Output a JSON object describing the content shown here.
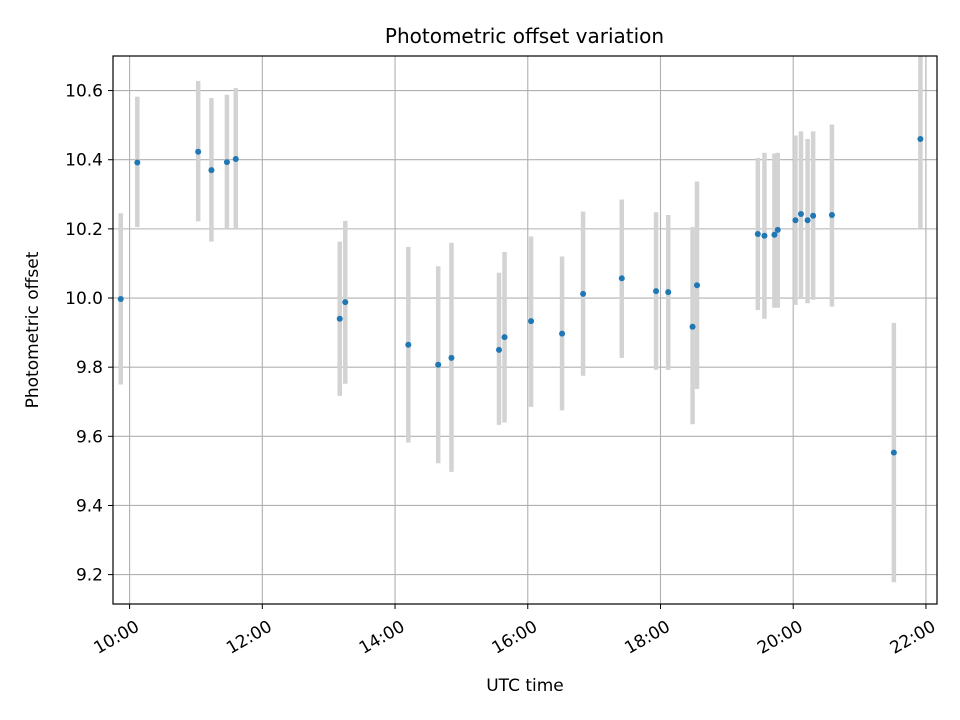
{
  "chart_data": {
    "type": "scatter",
    "title": "Photometric offset variation",
    "xlabel": "UTC time",
    "ylabel": "Photometric offset",
    "x_is_time": true,
    "xlim": [
      "09:45",
      "22:10"
    ],
    "ylim": [
      9.115,
      10.7
    ],
    "xticks": [
      "10:00",
      "12:00",
      "14:00",
      "16:00",
      "18:00",
      "20:00",
      "22:00"
    ],
    "yticks": [
      9.2,
      9.4,
      9.6,
      9.8,
      10.0,
      10.2,
      10.4,
      10.6
    ],
    "ytick_labels": [
      "9.2",
      "9.4",
      "9.6",
      "9.8",
      "10.0",
      "10.2",
      "10.4",
      "10.6"
    ],
    "grid": true,
    "marker_color": "#1f77b4",
    "errorbar_color": "#d3d3d3",
    "points": [
      {
        "t": "09:52",
        "y": 9.997,
        "lo": 9.75,
        "hi": 10.245
      },
      {
        "t": "10:07",
        "y": 10.392,
        "lo": 10.205,
        "hi": 10.582
      },
      {
        "t": "11:02",
        "y": 10.423,
        "lo": 10.222,
        "hi": 10.628
      },
      {
        "t": "11:14",
        "y": 10.37,
        "lo": 10.163,
        "hi": 10.578
      },
      {
        "t": "11:28",
        "y": 10.393,
        "lo": 10.2,
        "hi": 10.588
      },
      {
        "t": "11:36",
        "y": 10.402,
        "lo": 10.2,
        "hi": 10.607
      },
      {
        "t": "13:10",
        "y": 9.94,
        "lo": 9.717,
        "hi": 10.163
      },
      {
        "t": "13:15",
        "y": 9.988,
        "lo": 9.752,
        "hi": 10.223
      },
      {
        "t": "14:12",
        "y": 9.865,
        "lo": 9.582,
        "hi": 10.148
      },
      {
        "t": "14:39",
        "y": 9.807,
        "lo": 9.522,
        "hi": 10.092
      },
      {
        "t": "14:51",
        "y": 9.827,
        "lo": 9.497,
        "hi": 10.16
      },
      {
        "t": "15:34",
        "y": 9.85,
        "lo": 9.633,
        "hi": 10.073
      },
      {
        "t": "15:39",
        "y": 9.887,
        "lo": 9.64,
        "hi": 10.133
      },
      {
        "t": "16:03",
        "y": 9.933,
        "lo": 9.685,
        "hi": 10.178
      },
      {
        "t": "16:31",
        "y": 9.897,
        "lo": 9.675,
        "hi": 10.12
      },
      {
        "t": "16:50",
        "y": 10.012,
        "lo": 9.775,
        "hi": 10.25
      },
      {
        "t": "17:25",
        "y": 10.057,
        "lo": 9.827,
        "hi": 10.285
      },
      {
        "t": "17:56",
        "y": 10.02,
        "lo": 9.792,
        "hi": 10.248
      },
      {
        "t": "18:07",
        "y": 10.017,
        "lo": 9.792,
        "hi": 10.24
      },
      {
        "t": "18:29",
        "y": 9.917,
        "lo": 9.635,
        "hi": 10.205
      },
      {
        "t": "18:33",
        "y": 10.037,
        "lo": 9.737,
        "hi": 10.337
      },
      {
        "t": "19:28",
        "y": 10.185,
        "lo": 9.965,
        "hi": 10.405
      },
      {
        "t": "19:34",
        "y": 10.18,
        "lo": 9.94,
        "hi": 10.42
      },
      {
        "t": "19:43",
        "y": 10.183,
        "lo": 9.972,
        "hi": 10.418
      },
      {
        "t": "19:46",
        "y": 10.197,
        "lo": 9.972,
        "hi": 10.42
      },
      {
        "t": "20:02",
        "y": 10.225,
        "lo": 9.98,
        "hi": 10.47
      },
      {
        "t": "20:07",
        "y": 10.243,
        "lo": 10.0,
        "hi": 10.482
      },
      {
        "t": "20:13",
        "y": 10.225,
        "lo": 9.985,
        "hi": 10.46
      },
      {
        "t": "20:18",
        "y": 10.238,
        "lo": 9.995,
        "hi": 10.482
      },
      {
        "t": "20:35",
        "y": 10.24,
        "lo": 9.975,
        "hi": 10.502
      },
      {
        "t": "21:31",
        "y": 9.553,
        "lo": 9.178,
        "hi": 9.928
      },
      {
        "t": "21:55",
        "y": 10.46,
        "lo": 10.2,
        "hi": 10.72
      }
    ]
  }
}
